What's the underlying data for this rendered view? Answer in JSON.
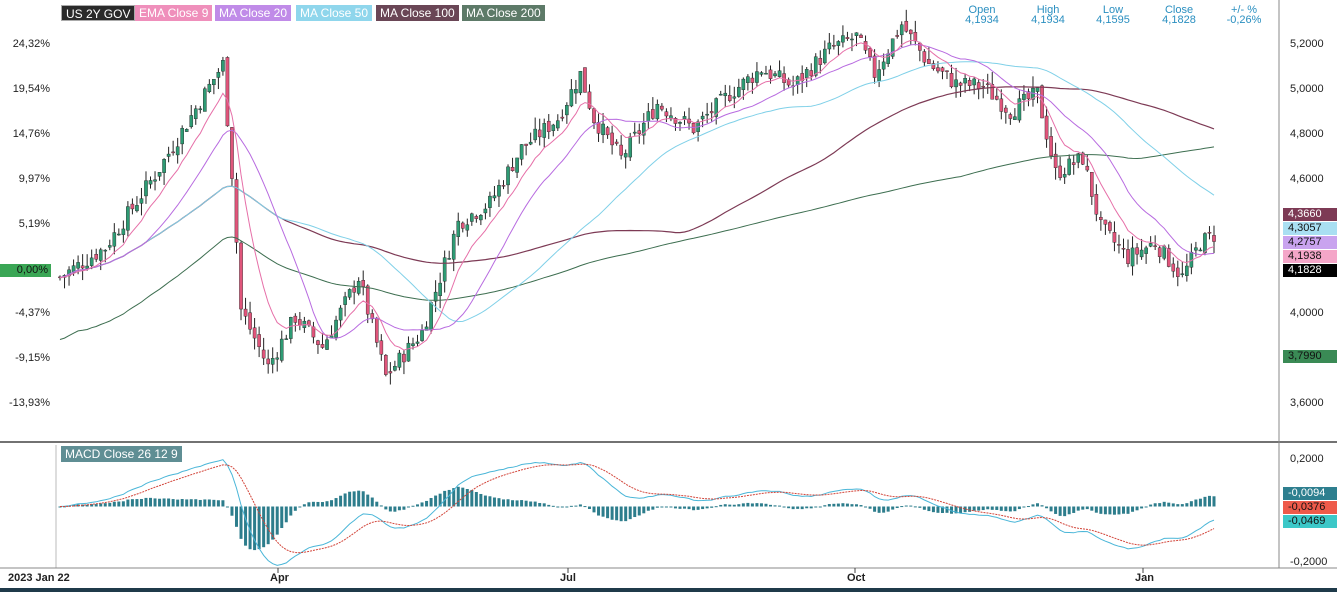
{
  "legend": {
    "items": [
      {
        "label": "US 2Y GOV",
        "color": "#222222"
      },
      {
        "label": "EMA Close 9",
        "color": "#e66fa8"
      },
      {
        "label": "MA Close 20",
        "color": "#b86be0"
      },
      {
        "label": "MA Close 50",
        "color": "#7fd0e8"
      },
      {
        "label": "MA Close 100",
        "color": "#7d3a55"
      },
      {
        "label": "MA Close 200",
        "color": "#3d6e50"
      }
    ]
  },
  "ohlc": {
    "open_label": "Open",
    "open_value": "4,1934",
    "high_label": "High",
    "high_value": "4,1934",
    "low_label": "Low",
    "low_value": "4,1595",
    "close_label": "Close",
    "close_value": "4,1828",
    "change_label": "+/- %",
    "change_value": "-0,26%"
  },
  "macd_label": "MACD Close 26 12 9",
  "left_axis": {
    "ticks": [
      "24,32%",
      "19,54%",
      "14,76%",
      "9,97%",
      "5,19%",
      "-4,37%",
      "-9,15%",
      "-13,93%"
    ],
    "zero_tick": "0,00%"
  },
  "right_axis": {
    "ticks": [
      "5,2000",
      "5,0000",
      "4,8000",
      "4,6000",
      "4,0000",
      "3,6000"
    ],
    "tags": [
      {
        "value": "4,3660",
        "bg": "#7d3a55",
        "fg": "#ffffff"
      },
      {
        "value": "4,3057",
        "bg": "#a9dff2",
        "fg": "#111111"
      },
      {
        "value": "4,2757",
        "bg": "#c9a3ef",
        "fg": "#111111"
      },
      {
        "value": "4,1938",
        "bg": "#f4a6c8",
        "fg": "#111111"
      },
      {
        "value": "4,1828",
        "bg": "#000000",
        "fg": "#ffffff"
      },
      {
        "value": "3,7990",
        "bg": "#3a8a55",
        "fg": "#111111"
      }
    ]
  },
  "macd_axis": {
    "ticks": [
      "0,2000",
      "-0,2000"
    ],
    "tags": [
      {
        "value": "-0,0094",
        "bg": "#2e7f8f",
        "fg": "#ffffff"
      },
      {
        "value": "-0,0376",
        "bg": "#ee5a4a",
        "fg": "#111111"
      },
      {
        "value": "-0,0469",
        "bg": "#3cc8c8",
        "fg": "#111111"
      }
    ]
  },
  "x_axis": {
    "labels": [
      "2023 Jan 22",
      "Apr",
      "Jul",
      "Oct",
      "Jan"
    ]
  },
  "colors": {
    "up": "#2e9b74",
    "down": "#e0557b",
    "macd_hist": "#2d7d8c",
    "macd_line": "#4ab6d8",
    "signal_line": "#d2453a"
  },
  "chart_data": {
    "type": "candlestick",
    "instrument": "US 2Y GOV",
    "price_axis_range": [
      3.52,
      5.29
    ],
    "percent_axis_range": [
      -13.93,
      24.32
    ],
    "macd_axis_range": [
      -0.22,
      0.22
    ],
    "last_values": {
      "open": 4.1934,
      "high": 4.1934,
      "low": 4.1595,
      "close": 4.1828,
      "change_pct": -0.26,
      "ema9": 4.1938,
      "ma20": 4.2757,
      "ma50": 4.3057,
      "ma100": 4.366,
      "ma200": 3.799,
      "macd": -0.0094,
      "signal": -0.0376,
      "macd_line": -0.0469
    },
    "trend_points": [
      {
        "t": 0,
        "close": 4.18
      },
      {
        "t": 10,
        "close": 4.3
      },
      {
        "t": 22,
        "close": 4.62
      },
      {
        "t": 28,
        "close": 4.8
      },
      {
        "t": 36,
        "close": 5.04
      },
      {
        "t": 38,
        "close": 4.6
      },
      {
        "t": 40,
        "close": 4.05
      },
      {
        "t": 46,
        "close": 3.82
      },
      {
        "t": 52,
        "close": 4.02
      },
      {
        "t": 58,
        "close": 3.9
      },
      {
        "t": 66,
        "close": 4.18
      },
      {
        "t": 72,
        "close": 3.78
      },
      {
        "t": 80,
        "close": 3.96
      },
      {
        "t": 88,
        "close": 4.4
      },
      {
        "t": 95,
        "close": 4.48
      },
      {
        "t": 102,
        "close": 4.7
      },
      {
        "t": 110,
        "close": 4.82
      },
      {
        "t": 115,
        "close": 5.0
      },
      {
        "t": 118,
        "close": 4.82
      },
      {
        "t": 124,
        "close": 4.66
      },
      {
        "t": 132,
        "close": 4.88
      },
      {
        "t": 140,
        "close": 4.78
      },
      {
        "t": 148,
        "close": 4.92
      },
      {
        "t": 155,
        "close": 5.02
      },
      {
        "t": 162,
        "close": 4.95
      },
      {
        "t": 170,
        "close": 5.1
      },
      {
        "t": 176,
        "close": 5.15
      },
      {
        "t": 180,
        "close": 5.0
      },
      {
        "t": 186,
        "close": 5.2
      },
      {
        "t": 192,
        "close": 5.04
      },
      {
        "t": 198,
        "close": 4.96
      },
      {
        "t": 204,
        "close": 4.95
      },
      {
        "t": 210,
        "close": 4.85
      },
      {
        "t": 216,
        "close": 4.92
      },
      {
        "t": 220,
        "close": 4.6
      },
      {
        "t": 226,
        "close": 4.66
      },
      {
        "t": 230,
        "close": 4.38
      },
      {
        "t": 236,
        "close": 4.26
      },
      {
        "t": 242,
        "close": 4.32
      },
      {
        "t": 248,
        "close": 4.18
      },
      {
        "t": 252,
        "close": 4.32
      },
      {
        "t": 256,
        "close": 4.36
      }
    ]
  }
}
